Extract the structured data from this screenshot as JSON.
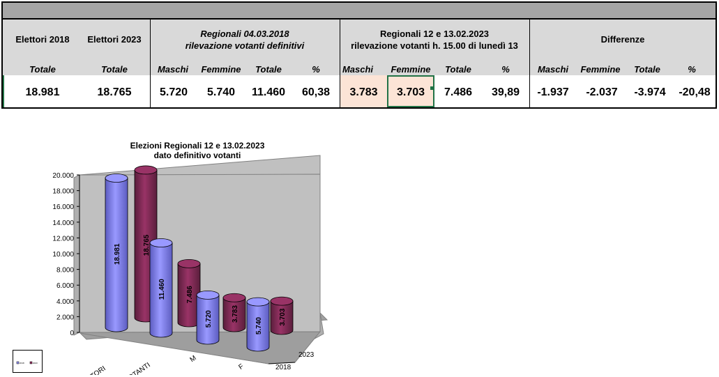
{
  "table": {
    "elettori_2018_label": "Elettori 2018",
    "elettori_2023_label": "Elettori  2023",
    "regionali_2018_line1": "Regionali 04.03.2018",
    "regionali_2018_line2": "rilevazione votanti definitivi",
    "regionali_2023_line1": "Regionali 12 e 13.02.2023",
    "regionali_2023_line2": "rilevazione votanti h. 15.00 di lunedì 13",
    "differenze_label": "Differenze",
    "sub_headers": [
      "Totale",
      "Totale",
      "Maschi",
      "Femmine",
      "Totale",
      "%",
      "Maschi",
      "Femmine",
      "Totale",
      "%",
      "Maschi",
      "Femmine",
      "Totale",
      "%"
    ],
    "values": [
      "18.981",
      "18.765",
      "5.720",
      "5.740",
      "11.460",
      "60,38",
      "3.783",
      "3.703",
      "7.486",
      "39,89",
      "-1.937",
      "-2.037",
      "-3.974",
      "-20,48"
    ]
  },
  "chart_data": {
    "type": "bar",
    "title_line1": "Elezioni Regionali 12 e 13.02.2023",
    "title_line2": "dato definitivo votanti",
    "categories": [
      "ELETTORI",
      "VOTANTI",
      "M",
      "F"
    ],
    "series": [
      {
        "name": "2018",
        "values": [
          18981,
          11460,
          5720,
          5740
        ],
        "labels": [
          "18.981",
          "11.460",
          "5.720",
          "5.740"
        ],
        "color": "#9999ff"
      },
      {
        "name": "2023",
        "values": [
          18765,
          7486,
          3783,
          3703
        ],
        "labels": [
          "18.765",
          "7.486",
          "3.783",
          "3.703"
        ],
        "color": "#993366"
      }
    ],
    "ylim": [
      0,
      20000
    ],
    "yticks": [
      "0",
      "2.000",
      "4.000",
      "6.000",
      "8.000",
      "10.000",
      "12.000",
      "14.000",
      "16.000",
      "18.000",
      "20.000"
    ],
    "depth_labels": [
      "2023",
      "2018"
    ],
    "legend": "bottom-left",
    "grid": false
  }
}
